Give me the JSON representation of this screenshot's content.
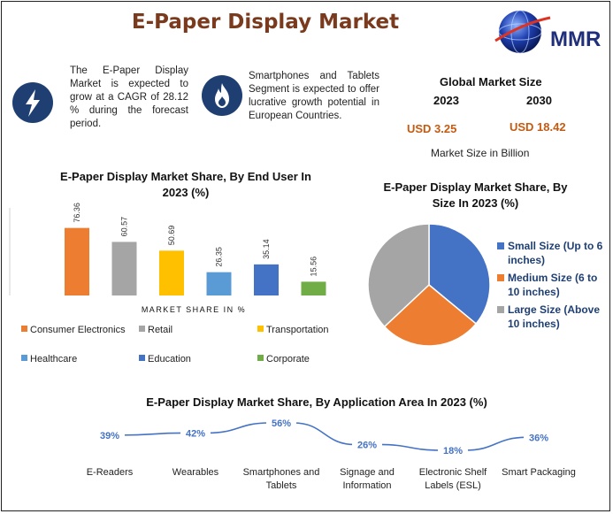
{
  "title": "E-Paper Display Market",
  "logo": {
    "text": "MMR"
  },
  "info": {
    "cagr_text": "The E-Paper Display Market is expected to grow at a CAGR of 28.12 % during the forecast period.",
    "segment_text": "Smartphones and Tablets Segment is expected to offer lucrative growth potential in European Countries."
  },
  "icons": {
    "left": "lightning-bolt-icon",
    "right": "flame-icon"
  },
  "global_market": {
    "title": "Global Market Size",
    "year_a": "2023",
    "year_b": "2030",
    "value_a": "USD 3.25",
    "value_b": "USD 18.42",
    "note": "Market Size in Billion"
  },
  "colors": {
    "title": "#7a3a1d",
    "value": "#c55a11",
    "icon_bg": "#1f3f73",
    "line": "#4472c4"
  },
  "chart_data": [
    {
      "type": "bar",
      "title": "E-Paper Display Market Share, By End User In 2023 (%)",
      "xlabel": "MARKET SHARE IN %",
      "categories": [
        "Consumer Electronics",
        "Retail",
        "Transportation",
        "Healthcare",
        "Education",
        "Corporate"
      ],
      "values": [
        76.36,
        60.57,
        50.69,
        26.35,
        35.14,
        15.56
      ],
      "value_labels": [
        "76.36",
        "60.57",
        "50.69",
        "26.35",
        "35.14",
        "15.56"
      ],
      "colors": [
        "#ed7d31",
        "#a5a5a5",
        "#ffc000",
        "#5b9bd5",
        "#4472c4",
        "#70ad47"
      ],
      "ylim": [
        0,
        100
      ],
      "legend": "bottom"
    },
    {
      "type": "pie",
      "title": "E-Paper Display Market Share, By Size In 2023 (%)",
      "labels": [
        "Small Size (Up to 6 inches)",
        "Medium Size (6 to 10 inches)",
        "Large Size (Above 10 inches)"
      ],
      "legend_lines": [
        [
          "Small Size (Up to 6",
          "inches)"
        ],
        [
          "Medium Size (6 to",
          "10 inches)"
        ],
        [
          "Large Size (Above",
          "10 inches)"
        ]
      ],
      "values": [
        36,
        27,
        37
      ],
      "colors": [
        "#4472c4",
        "#ed7d31",
        "#a5a5a5"
      ],
      "legend": "right"
    },
    {
      "type": "line",
      "title": "E-Paper Display Market Share, By Application Area In 2023 (%)",
      "categories": [
        "E-Readers",
        "Wearables",
        "Smartphones and Tablets",
        "Signage and Information",
        "Electronic Shelf Labels (ESL)",
        "Smart Packaging"
      ],
      "category_lines": [
        [
          "E-Readers"
        ],
        [
          "Wearables"
        ],
        [
          "Smartphones and",
          "Tablets"
        ],
        [
          "Signage and",
          "Information"
        ],
        [
          "Electronic Shelf",
          "Labels (ESL)"
        ],
        [
          "Smart Packaging"
        ]
      ],
      "values": [
        39,
        42,
        56,
        26,
        18,
        36
      ],
      "value_labels": [
        "39%",
        "42%",
        "56%",
        "26%",
        "18%",
        "36%"
      ]
    }
  ]
}
